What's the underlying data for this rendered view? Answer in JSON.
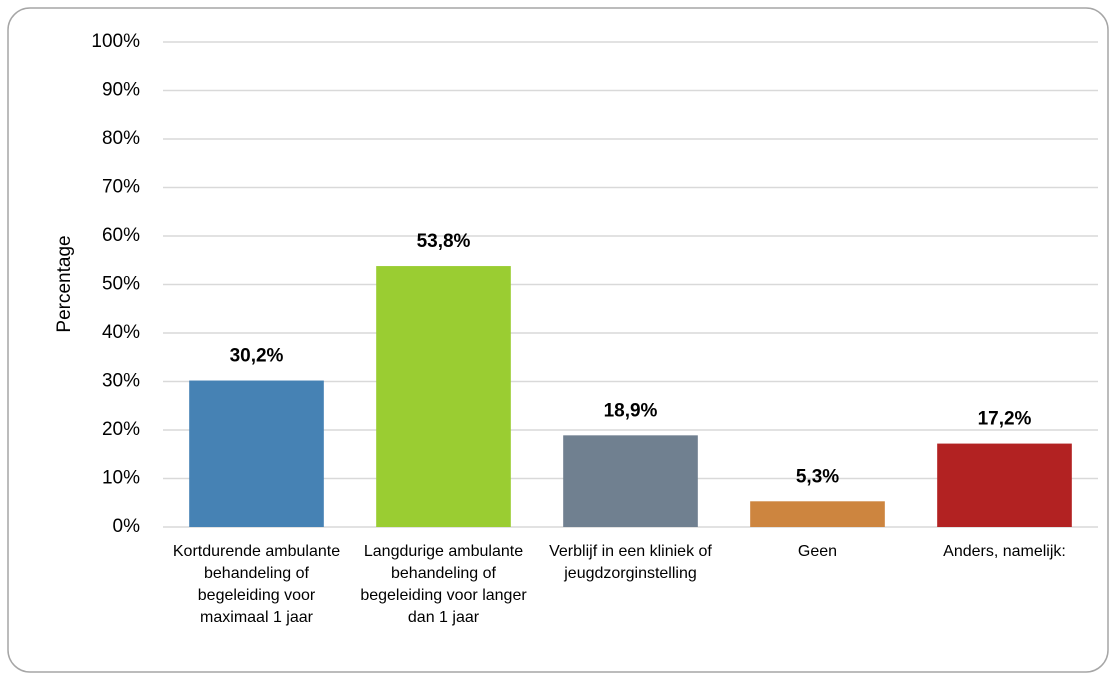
{
  "chart_data": {
    "type": "bar",
    "y_label": "Percentage",
    "categories": [
      "Kortdurende ambulante behandeling of begeleiding voor maximaal 1 jaar",
      "Langdurige ambulante behandeling of begeleiding voor langer dan 1 jaar",
      "Verblijf in een kliniek of jeugdzorginstelling",
      "Geen",
      "Anders, namelijk:"
    ],
    "values": [
      30.2,
      53.8,
      18.9,
      5.3,
      17.2
    ],
    "value_labels": [
      "30,2%",
      "53,8%",
      "18,9%",
      "5,3%",
      "17,2%"
    ],
    "colors": [
      "#4682b4",
      "#9acd32",
      "#708090",
      "#cd853f",
      "#b22222"
    ],
    "ylim": [
      0,
      100
    ],
    "yticks": [
      {
        "value": 0,
        "label": "0%"
      },
      {
        "value": 10,
        "label": "10%"
      },
      {
        "value": 20,
        "label": "20%"
      },
      {
        "value": 30,
        "label": "30%"
      },
      {
        "value": 40,
        "label": "40%"
      },
      {
        "value": 50,
        "label": "50%"
      },
      {
        "value": 60,
        "label": "60%"
      },
      {
        "value": 70,
        "label": "70%"
      },
      {
        "value": 80,
        "label": "80%"
      },
      {
        "value": 90,
        "label": "90%"
      },
      {
        "value": 100,
        "label": "100%"
      }
    ],
    "grid": true
  }
}
